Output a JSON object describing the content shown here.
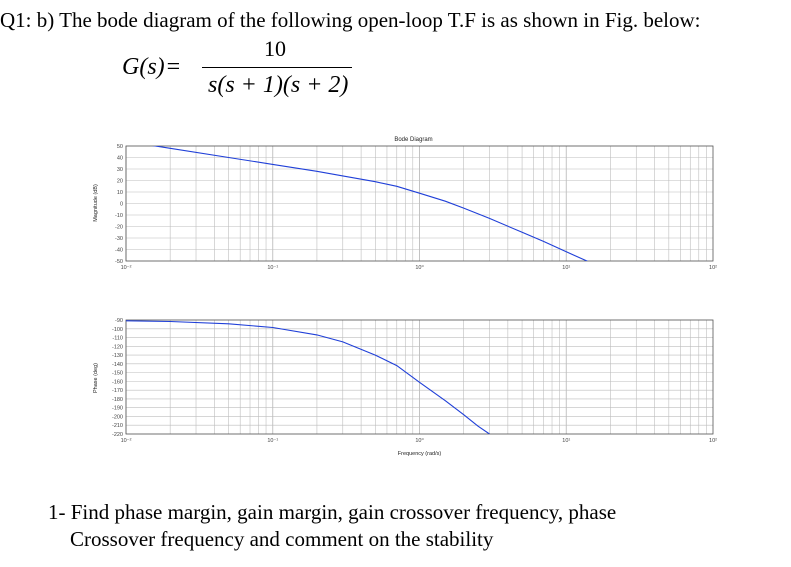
{
  "header": "Q1: b) The bode diagram of the following open-loop T.F is as shown in Fig. below:",
  "formula": {
    "lhs": "G(s)",
    "eq": "=",
    "numerator": "10",
    "denominator": "s(s + 1)(s + 2)"
  },
  "question": {
    "line1": "1- Find phase margin, gain margin, gain crossover frequency, phase",
    "line2": "Crossover frequency and comment on the stability"
  },
  "colors": {
    "curve": "#1f3fd8",
    "grid": "#bdbdbd",
    "axis": "#555555"
  },
  "chart_data": [
    {
      "type": "line",
      "title": "Bode Diagram",
      "ylabel": "Magnitude (dB)",
      "xscale": "log",
      "xlim": [
        0.01,
        100
      ],
      "ylim": [
        -50,
        50
      ],
      "yticks": [
        50,
        40,
        30,
        20,
        10,
        0,
        -10,
        -20,
        -30,
        -40,
        -50
      ],
      "xtick_labels": [
        "10⁻²",
        "10⁻¹",
        "10⁰",
        "10¹",
        "10²"
      ],
      "grid": true,
      "series": [
        {
          "x": [
            0.01,
            0.02,
            0.05,
            0.1,
            0.2,
            0.3,
            0.5,
            0.7,
            1,
            1.5,
            2,
            3,
            5,
            7,
            10,
            15
          ],
          "y": [
            54,
            48,
            40,
            34,
            28,
            24,
            19,
            15,
            9,
            2,
            -4,
            -13,
            -25,
            -33,
            -42,
            -52
          ]
        }
      ]
    },
    {
      "type": "line",
      "xlabel": "Frequency (rad/s)",
      "ylabel": "Phase (deg)",
      "xscale": "log",
      "xlim": [
        0.01,
        100
      ],
      "ylim": [
        -220,
        -90
      ],
      "yticks": [
        -90,
        -100,
        -110,
        -120,
        -130,
        -140,
        -150,
        -160,
        -170,
        -180,
        -190,
        -200,
        -210,
        -220
      ],
      "xtick_labels": [
        "10⁻²",
        "10⁻¹",
        "10⁰",
        "10¹",
        "10²"
      ],
      "grid": true,
      "series": [
        {
          "x": [
            0.01,
            0.02,
            0.05,
            0.1,
            0.2,
            0.3,
            0.5,
            0.7,
            1,
            1.5,
            2,
            2.5,
            3
          ],
          "y": [
            -90.9,
            -91.7,
            -94.3,
            -98.6,
            -107,
            -115,
            -130,
            -142,
            -161,
            -182,
            -198,
            -211,
            -220
          ]
        }
      ]
    }
  ]
}
